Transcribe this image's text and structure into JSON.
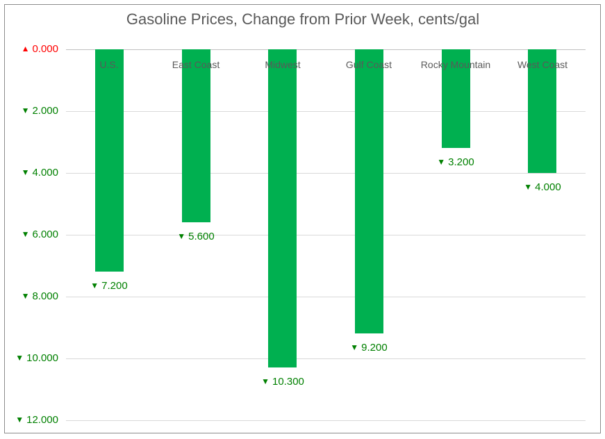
{
  "title": "Gasoline Prices, Change from Prior Week, cents/gal",
  "chart_data": {
    "type": "bar",
    "title": "Gasoline Prices, Change from Prior Week, cents/gal",
    "categories": [
      "U.S.",
      "East Coast",
      "Midwest",
      "Gulf Coast",
      "Rocky Mountain",
      "West Coast"
    ],
    "values": [
      -7.2,
      -5.6,
      -10.3,
      -9.2,
      -3.2,
      -4.0
    ],
    "data_labels": [
      "7.200",
      "5.600",
      "10.300",
      "9.200",
      "3.200",
      "4.000"
    ],
    "data_label_symbol": "▼",
    "y_ticks": [
      {
        "symbol": "▲",
        "label": "0.000",
        "value": 0,
        "color": "#FF0000"
      },
      {
        "symbol": "▼",
        "label": "2.000",
        "value": -2,
        "color": "#008000"
      },
      {
        "symbol": "▼",
        "label": "4.000",
        "value": -4,
        "color": "#008000"
      },
      {
        "symbol": "▼",
        "label": "6.000",
        "value": -6,
        "color": "#008000"
      },
      {
        "symbol": "▼",
        "label": "8.000",
        "value": -8,
        "color": "#008000"
      },
      {
        "symbol": "▼",
        "label": "10.000",
        "value": -10,
        "color": "#008000"
      },
      {
        "symbol": "▼",
        "label": "12.000",
        "value": -12,
        "color": "#008000"
      }
    ],
    "ylim": [
      -12,
      0
    ],
    "grid": true,
    "legend": false,
    "orientation": "vertical-negative",
    "bar_color": "#00B050",
    "data_label_color": "#008000",
    "category_label_color": "#595959",
    "title_color": "#595959"
  },
  "colors": {
    "bar_green": "#00B050",
    "label_green": "#008000",
    "zero_red": "#FF0000",
    "text_gray": "#595959",
    "gridline": "#D9D9D9",
    "axis_line": "#BFBFBF",
    "frame_border": "#8C8C8C",
    "background": "#FFFFFF"
  }
}
